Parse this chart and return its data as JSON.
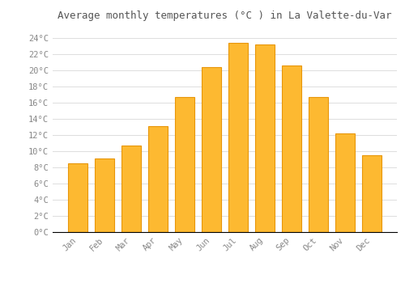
{
  "title": "Average monthly temperatures (°C ) in La Valette-du-Var",
  "months": [
    "Jan",
    "Feb",
    "Mar",
    "Apr",
    "May",
    "Jun",
    "Jul",
    "Aug",
    "Sep",
    "Oct",
    "Nov",
    "Dec"
  ],
  "values": [
    8.5,
    9.1,
    10.7,
    13.1,
    16.7,
    20.4,
    23.4,
    23.2,
    20.6,
    16.7,
    12.2,
    9.5
  ],
  "bar_color": "#FDB931",
  "bar_edge_color": "#E8960A",
  "background_color": "#FFFFFF",
  "grid_color": "#DDDDDD",
  "ytick_labels": [
    "0°C",
    "2°C",
    "4°C",
    "6°C",
    "8°C",
    "10°C",
    "12°C",
    "14°C",
    "16°C",
    "18°C",
    "20°C",
    "22°C",
    "24°C"
  ],
  "ytick_values": [
    0,
    2,
    4,
    6,
    8,
    10,
    12,
    14,
    16,
    18,
    20,
    22,
    24
  ],
  "ylim": [
    0,
    25.5
  ],
  "title_fontsize": 9,
  "tick_fontsize": 7.5,
  "font_color": "#888888",
  "title_color": "#555555",
  "bar_width": 0.72
}
